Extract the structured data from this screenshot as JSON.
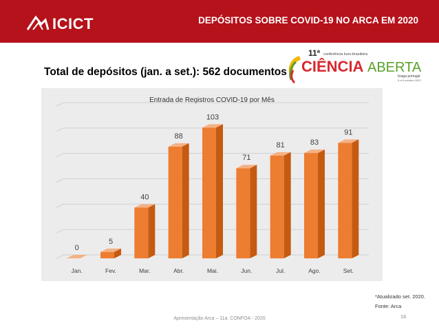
{
  "header": {
    "logo_text": "ICICT",
    "title": "DEPÓSITOS SOBRE COVID-19 NO ARCA EM 2020",
    "colors": {
      "bar": "#b5121b"
    }
  },
  "subtitle": "Total de depósitos (jan. a set.): 562 documentos",
  "conference_logo": {
    "edition": "11ª",
    "caption": "conferência luso-brasileira",
    "word1": "CIÊNCIA",
    "word2": "ABERTA",
    "place": "braga·portugal",
    "dates": "5 a 6 outubro 2020",
    "colors": {
      "red": "#d7282f",
      "green": "#5aa02c",
      "gold": "#f2b705"
    }
  },
  "chart_data": {
    "type": "bar",
    "title": "Entrada de Registros COVID-19 por Mês",
    "categories": [
      "Jan.",
      "Fev.",
      "Mar.",
      "Abr.",
      "Mai.",
      "Jun.",
      "Jul.",
      "Ago.",
      "Set."
    ],
    "values": [
      0,
      5,
      40,
      88,
      103,
      71,
      81,
      83,
      91
    ],
    "ylim": [
      0,
      120
    ],
    "grid": true,
    "xlabel": "",
    "ylabel": "",
    "colors": {
      "front": "#ed7d31",
      "side": "#c55a11",
      "top": "#f4b183",
      "background": "#ececec"
    }
  },
  "footnote": {
    "line1": "*Atualizado set. 2020.",
    "line2": "Fonte: Arca"
  },
  "footer": {
    "text": "Apresentação Arca – 11a. CONFOA - 2020",
    "page": "16"
  }
}
